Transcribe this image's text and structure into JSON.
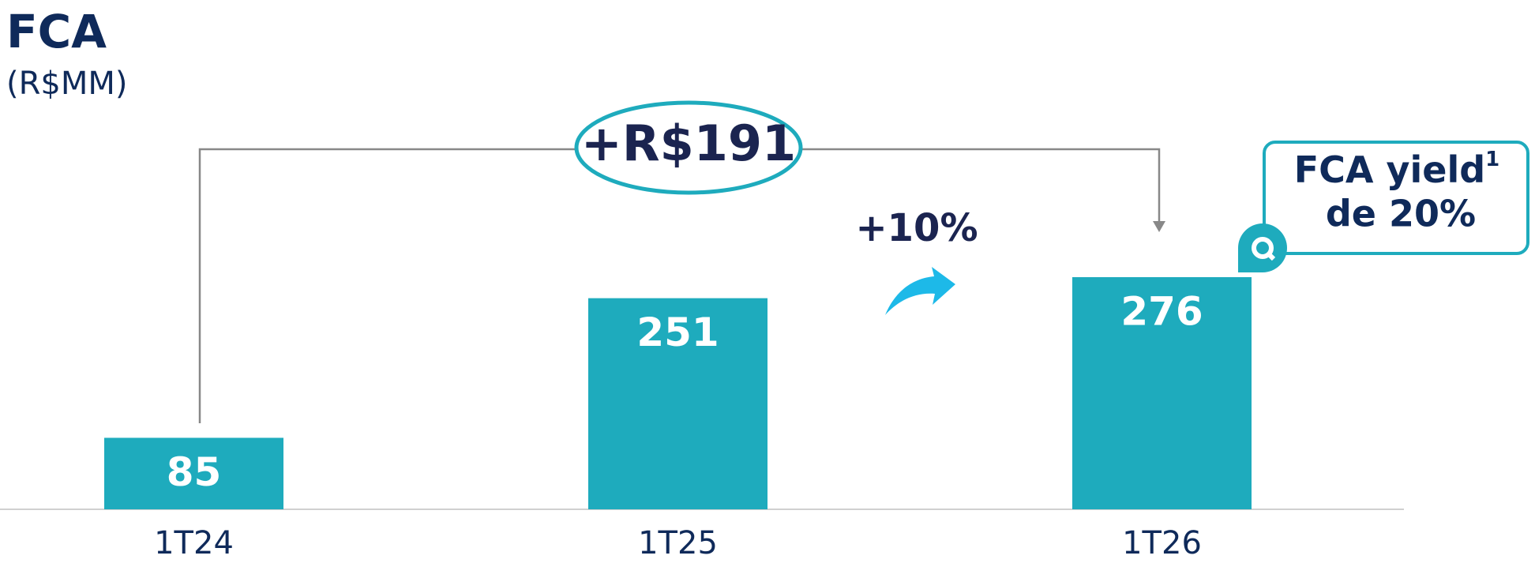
{
  "chart_data": {
    "type": "bar",
    "title": "FCA",
    "subtitle": "(R$MM)",
    "categories": [
      "1T24",
      "1T25",
      "1T26"
    ],
    "values": [
      85,
      251,
      276
    ],
    "color": "#1eabbd",
    "annotations": {
      "total_change": "+R$191",
      "growth": "+10%",
      "callout_line1": "FCA yield",
      "callout_sup": "1",
      "callout_line2": "de 20%"
    }
  }
}
